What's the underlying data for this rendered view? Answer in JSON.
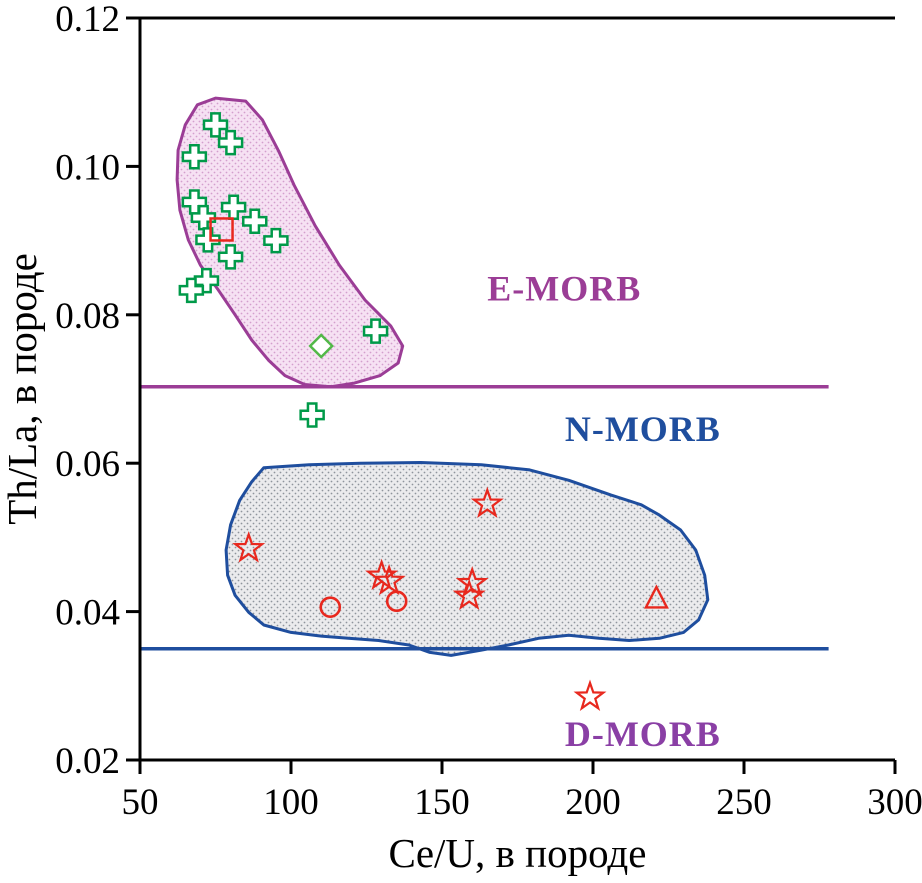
{
  "chart_data": {
    "type": "scatter",
    "title": "",
    "xlabel": "Ce/U, в породе",
    "ylabel": "Th/La, в породе",
    "xlim": [
      50,
      300
    ],
    "ylim": [
      0.02,
      0.12
    ],
    "grid": false,
    "axes": {
      "x_ticks": [
        {
          "value": 50,
          "label": "50"
        },
        {
          "value": 100,
          "label": "100"
        },
        {
          "value": 150,
          "label": "150"
        },
        {
          "value": 200,
          "label": "200"
        },
        {
          "value": 250,
          "label": "250"
        },
        {
          "value": 300,
          "label": "300"
        }
      ],
      "y_ticks": [
        {
          "value": 0.02,
          "label": "0.02"
        },
        {
          "value": 0.04,
          "label": "0.04"
        },
        {
          "value": 0.06,
          "label": "0.06"
        },
        {
          "value": 0.08,
          "label": "0.08"
        },
        {
          "value": 0.1,
          "label": "0.10"
        },
        {
          "value": 0.12,
          "label": "0.12"
        }
      ]
    },
    "fields": [
      {
        "name": "E-MORB",
        "stroke": "#9b3d96",
        "fill": "#f6e1f3",
        "dot": "#d39fcd",
        "points": [
          [
            75,
            0.1092
          ],
          [
            85,
            0.1088
          ],
          [
            90.5,
            0.1063
          ],
          [
            96,
            0.102
          ],
          [
            101,
            0.0975
          ],
          [
            108,
            0.092
          ],
          [
            116,
            0.0867
          ],
          [
            124.5,
            0.082
          ],
          [
            133,
            0.0785
          ],
          [
            137,
            0.0758
          ],
          [
            135.5,
            0.0735
          ],
          [
            129.5,
            0.0718
          ],
          [
            121,
            0.0708
          ],
          [
            113,
            0.0703
          ],
          [
            104.5,
            0.0706
          ],
          [
            98,
            0.0718
          ],
          [
            92.5,
            0.0739
          ],
          [
            87,
            0.0766
          ],
          [
            81.5,
            0.08
          ],
          [
            76,
            0.0833
          ],
          [
            70,
            0.0867
          ],
          [
            66,
            0.0901
          ],
          [
            63.2,
            0.0941
          ],
          [
            62.3,
            0.0982
          ],
          [
            62.6,
            0.1022
          ],
          [
            65,
            0.1056
          ],
          [
            69,
            0.1083
          ]
        ]
      },
      {
        "name": "N-MORB",
        "stroke": "#1f4e9e",
        "fill": "#ebebed",
        "dot": "#8f949c",
        "points": [
          [
            91,
            0.0594
          ],
          [
            106,
            0.0598
          ],
          [
            123,
            0.06
          ],
          [
            143,
            0.0601
          ],
          [
            163,
            0.0598
          ],
          [
            179,
            0.0591
          ],
          [
            192,
            0.0577
          ],
          [
            206,
            0.0557
          ],
          [
            216,
            0.0544
          ],
          [
            222,
            0.053
          ],
          [
            229,
            0.051
          ],
          [
            234,
            0.0483
          ],
          [
            237,
            0.0449
          ],
          [
            238,
            0.0416
          ],
          [
            235,
            0.0389
          ],
          [
            230,
            0.0372
          ],
          [
            222,
            0.0364
          ],
          [
            212,
            0.0361
          ],
          [
            202,
            0.0364
          ],
          [
            192,
            0.0368
          ],
          [
            182,
            0.0364
          ],
          [
            172,
            0.0355
          ],
          [
            163,
            0.0348
          ],
          [
            153,
            0.0341
          ],
          [
            146,
            0.0345
          ],
          [
            139,
            0.0355
          ],
          [
            129,
            0.0361
          ],
          [
            119,
            0.0364
          ],
          [
            110,
            0.0367
          ],
          [
            100,
            0.0372
          ],
          [
            91,
            0.0382
          ],
          [
            86,
            0.0399
          ],
          [
            81.5,
            0.0422
          ],
          [
            79,
            0.0449
          ],
          [
            78.5,
            0.0483
          ],
          [
            80,
            0.0517
          ],
          [
            83,
            0.055
          ],
          [
            87,
            0.0575
          ]
        ]
      }
    ],
    "hlines": [
      {
        "name": "emorb-nmorb-boundary",
        "y": 0.0703,
        "x1": 50,
        "x2": 278,
        "color": "#9b3d96",
        "width": 3.5
      },
      {
        "name": "nmorb-dmorb-boundary",
        "y": 0.035,
        "x1": 50,
        "x2": 278,
        "color": "#1f4e9e",
        "width": 3.5
      }
    ],
    "series": [
      {
        "name": "green-cross-samples",
        "marker": "cross",
        "color": "#009a49",
        "points": [
          [
            75,
            0.1056
          ],
          [
            80,
            0.1032
          ],
          [
            68,
            0.1013
          ],
          [
            68,
            0.0952
          ],
          [
            71,
            0.0931
          ],
          [
            81,
            0.0945
          ],
          [
            88,
            0.0926
          ],
          [
            72.5,
            0.0901
          ],
          [
            95,
            0.09
          ],
          [
            80,
            0.0878
          ],
          [
            72,
            0.0846
          ],
          [
            67,
            0.0833
          ],
          [
            128,
            0.0778
          ],
          [
            107,
            0.0665
          ]
        ]
      },
      {
        "name": "green-diamond-sample",
        "marker": "diamond",
        "color": "#52b848",
        "points": [
          [
            110,
            0.0758
          ]
        ]
      },
      {
        "name": "red-square-sample",
        "marker": "square",
        "color": "#e8281e",
        "points": [
          [
            77,
            0.0915
          ]
        ]
      },
      {
        "name": "red-star-samples",
        "marker": "star",
        "color": "#e8281e",
        "points": [
          [
            165,
            0.0545
          ],
          [
            86,
            0.0485
          ],
          [
            130,
            0.0448
          ],
          [
            132.5,
            0.0441
          ],
          [
            160,
            0.0438
          ],
          [
            159,
            0.0421
          ],
          [
            199,
            0.0285
          ]
        ]
      },
      {
        "name": "red-circle-samples",
        "marker": "circle",
        "color": "#e8281e",
        "points": [
          [
            113,
            0.0406
          ],
          [
            135,
            0.0414
          ]
        ]
      },
      {
        "name": "red-triangle-sample",
        "marker": "triangle",
        "color": "#e8281e",
        "points": [
          [
            221,
            0.0417
          ]
        ]
      }
    ],
    "annotations": [
      {
        "text": "E-MORB",
        "x": 190.5,
        "y": 0.0836,
        "color": "#9b3d96"
      },
      {
        "text": "N-MORB",
        "x": 216.5,
        "y": 0.0647,
        "color": "#1f4e9e"
      },
      {
        "text": "D-MORB",
        "x": 216.5,
        "y": 0.0236,
        "color": "#8a3fa5"
      }
    ],
    "legend": null
  }
}
